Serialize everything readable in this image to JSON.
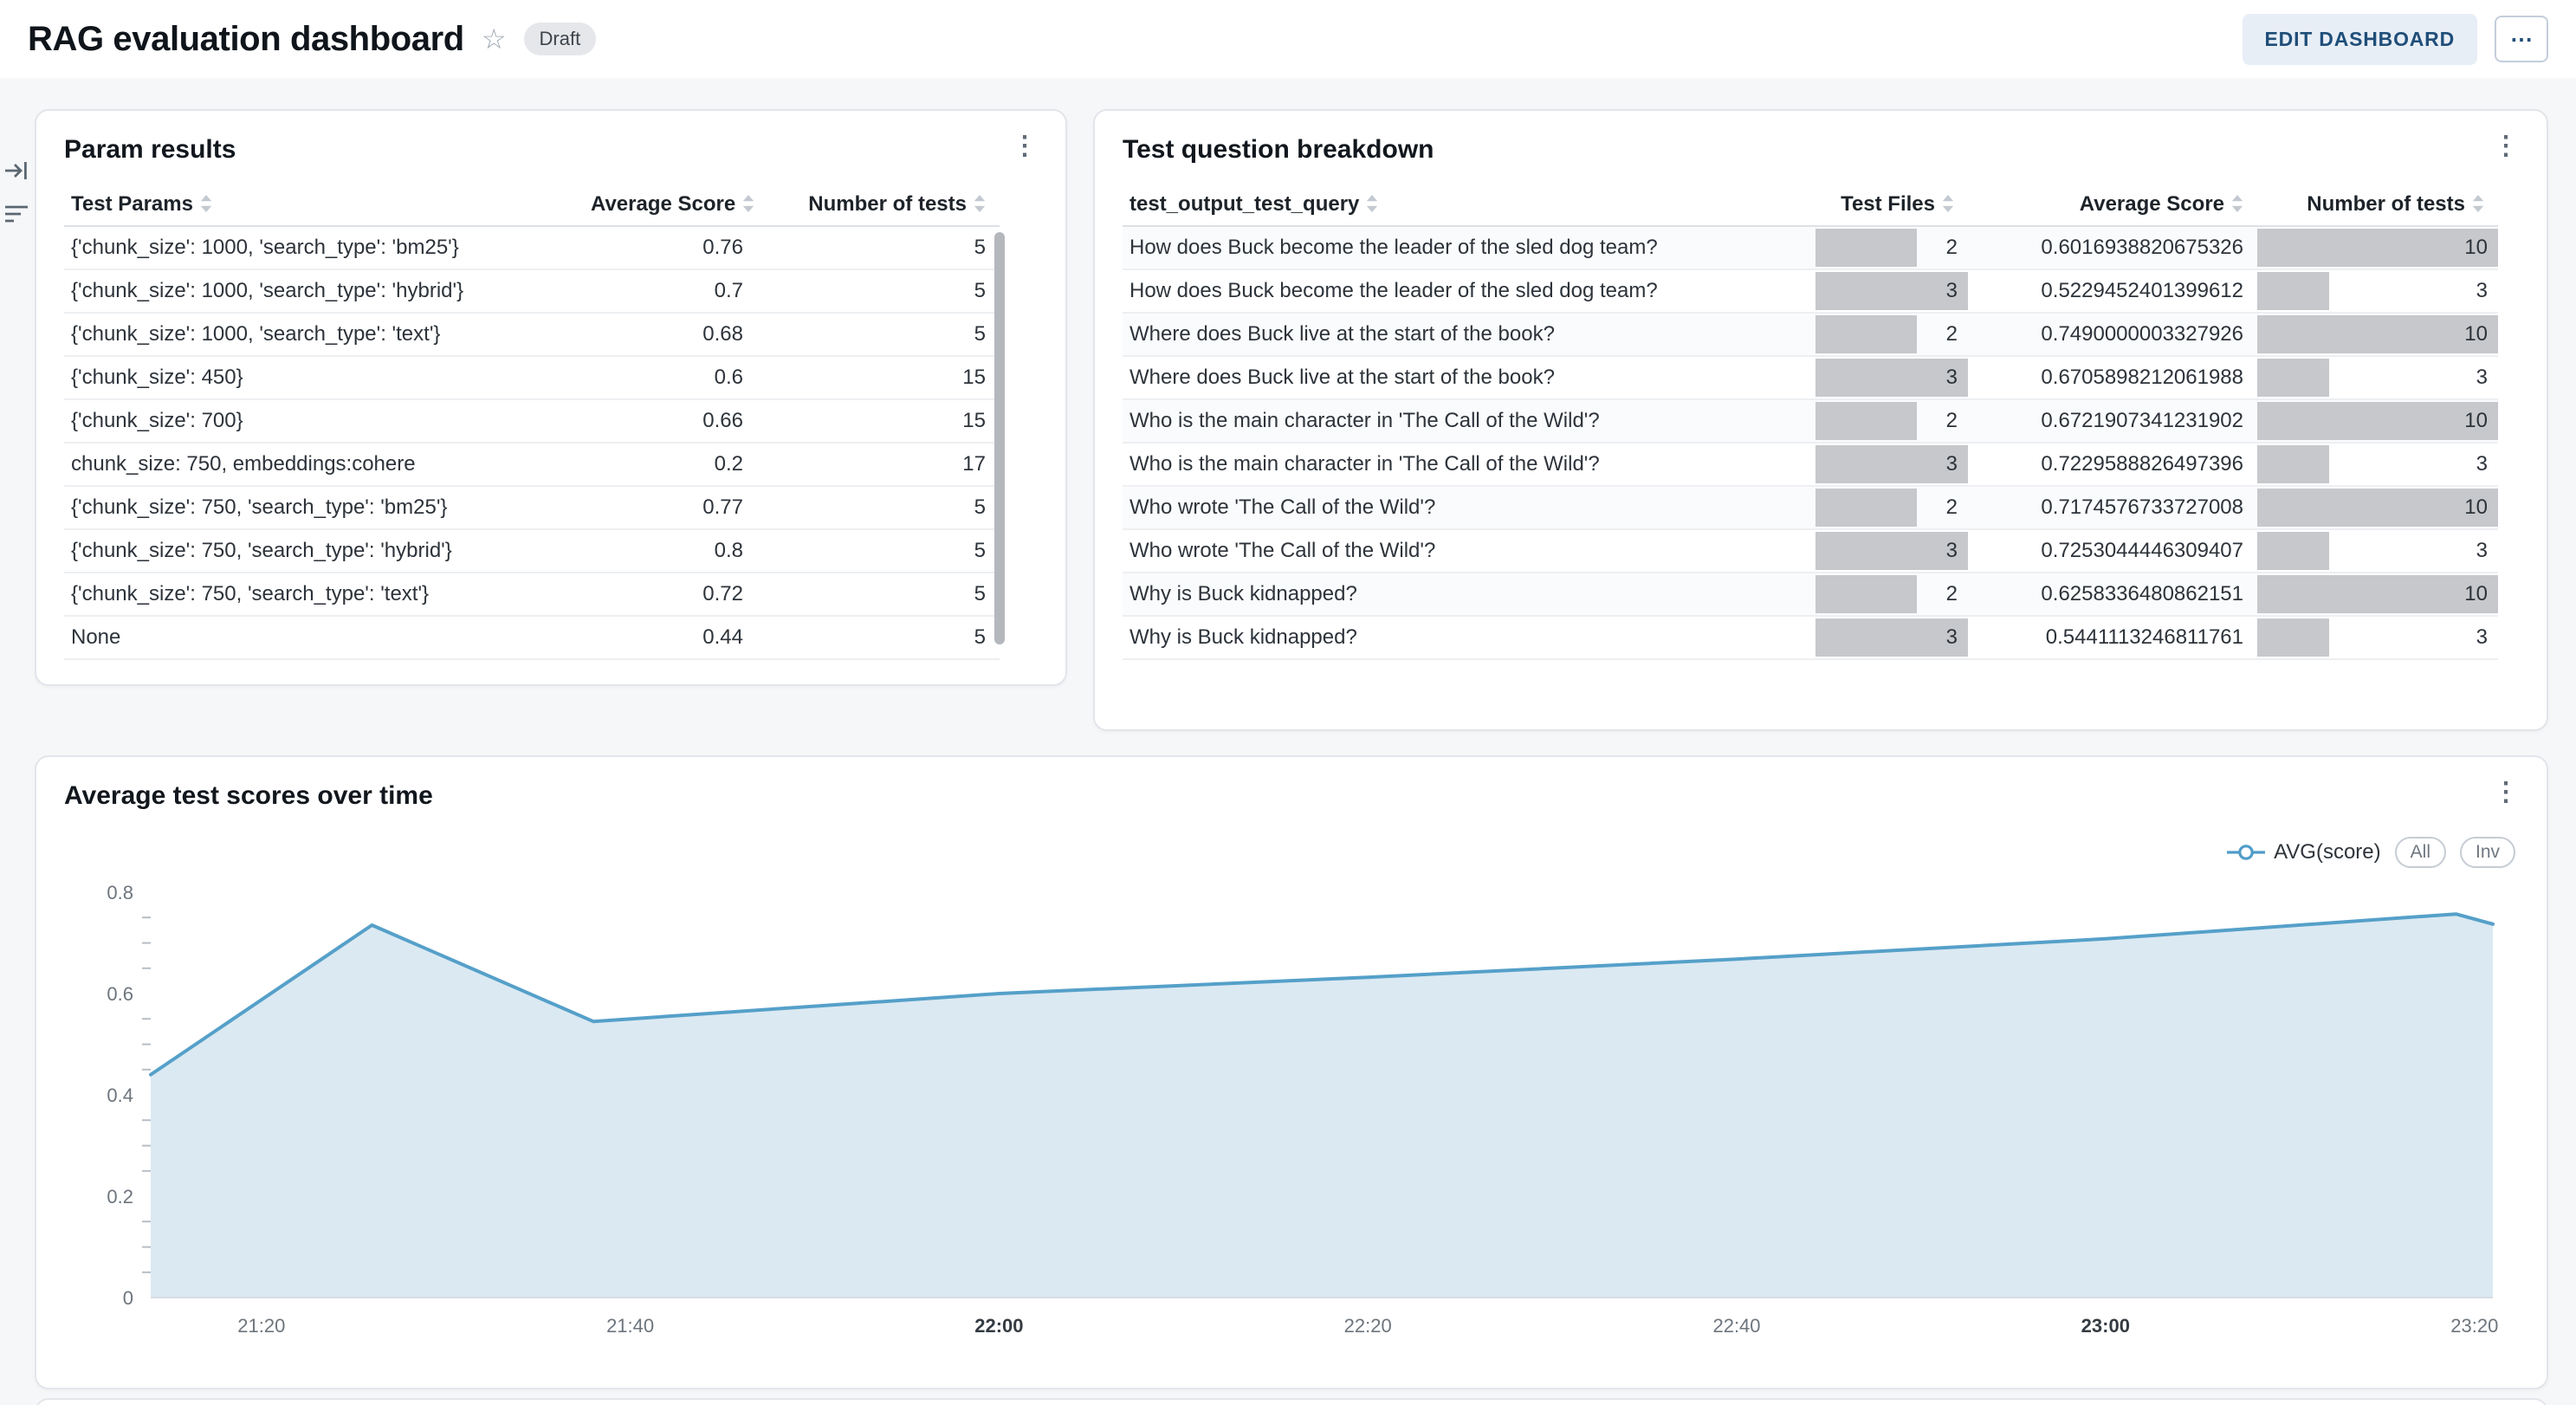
{
  "header": {
    "title": "RAG evaluation dashboard",
    "status_badge": "Draft",
    "edit_button": "EDIT DASHBOARD",
    "more_button": "⋯"
  },
  "icons": {
    "kebab": "⋮",
    "star": "☆"
  },
  "param_results": {
    "title": "Param results",
    "columns": [
      "Test Params",
      "Average Score",
      "Number of tests"
    ],
    "rows": [
      {
        "params": "{'chunk_size': 1000, 'search_type': 'bm25'}",
        "avg_score": "0.76",
        "num_tests": "5"
      },
      {
        "params": "{'chunk_size': 1000, 'search_type': 'hybrid'}",
        "avg_score": "0.7",
        "num_tests": "5"
      },
      {
        "params": "{'chunk_size': 1000, 'search_type': 'text'}",
        "avg_score": "0.68",
        "num_tests": "5"
      },
      {
        "params": "{'chunk_size': 450}",
        "avg_score": "0.6",
        "num_tests": "15"
      },
      {
        "params": "{'chunk_size': 700}",
        "avg_score": "0.66",
        "num_tests": "15"
      },
      {
        "params": "chunk_size: 750, embeddings:cohere",
        "avg_score": "0.2",
        "num_tests": "17"
      },
      {
        "params": "{'chunk_size': 750, 'search_type': 'bm25'}",
        "avg_score": "0.77",
        "num_tests": "5"
      },
      {
        "params": "{'chunk_size': 750, 'search_type': 'hybrid'}",
        "avg_score": "0.8",
        "num_tests": "5"
      },
      {
        "params": "{'chunk_size': 750, 'search_type': 'text'}",
        "avg_score": "0.72",
        "num_tests": "5"
      },
      {
        "params": "None",
        "avg_score": "0.44",
        "num_tests": "5"
      }
    ]
  },
  "question_breakdown": {
    "title": "Test question breakdown",
    "columns": [
      "test_output_test_query",
      "Test Files",
      "Average Score",
      "Number of tests"
    ],
    "bar_color": "#c6c8cb",
    "test_files_max": 3,
    "num_tests_max": 10,
    "rows": [
      {
        "query": "How does Buck become the leader of the sled dog team?",
        "test_files": 2,
        "avg_score": "0.6016938820675326",
        "num_tests": 10
      },
      {
        "query": "How does Buck become the leader of the sled dog team?",
        "test_files": 3,
        "avg_score": "0.5229452401399612",
        "num_tests": 3
      },
      {
        "query": "Where does Buck live at the start of the book?",
        "test_files": 2,
        "avg_score": "0.7490000003327926",
        "num_tests": 10
      },
      {
        "query": "Where does Buck live at the start of the book?",
        "test_files": 3,
        "avg_score": "0.6705898212061988",
        "num_tests": 3
      },
      {
        "query": "Who is the main character in 'The Call of the Wild'?",
        "test_files": 2,
        "avg_score": "0.6721907341231902",
        "num_tests": 10
      },
      {
        "query": "Who is the main character in 'The Call of the Wild'?",
        "test_files": 3,
        "avg_score": "0.7229588826497396",
        "num_tests": 3
      },
      {
        "query": "Who wrote 'The Call of the Wild'?",
        "test_files": 2,
        "avg_score": "0.7174576733727008",
        "num_tests": 10
      },
      {
        "query": "Who wrote 'The Call of the Wild'?",
        "test_files": 3,
        "avg_score": "0.7253044446309407",
        "num_tests": 3
      },
      {
        "query": "Why is Buck kidnapped?",
        "test_files": 2,
        "avg_score": "0.6258336480862151",
        "num_tests": 10
      },
      {
        "query": "Why is Buck kidnapped?",
        "test_files": 3,
        "avg_score": "0.5441113246811761",
        "num_tests": 3
      }
    ]
  },
  "chart_data": {
    "type": "area",
    "title": "Average test scores over time",
    "legend": [
      {
        "label": "AVG(score)",
        "color": "#4f9cc9"
      }
    ],
    "buttons": [
      "All",
      "Inv"
    ],
    "line_color": "#55a0c9",
    "fill_color": "#dbe9f2",
    "ylim": [
      0,
      0.8
    ],
    "y_major_ticks": [
      0,
      0.2,
      0.4,
      0.6,
      0.8
    ],
    "y_minor_step": 0.05,
    "x_domain_minutes": [
      14,
      141
    ],
    "x_ticks": [
      {
        "minute": 20,
        "label": "21:20",
        "bold": false
      },
      {
        "minute": 40,
        "label": "21:40",
        "bold": false
      },
      {
        "minute": 60,
        "label": "22:00",
        "bold": true
      },
      {
        "minute": 80,
        "label": "22:20",
        "bold": false
      },
      {
        "minute": 100,
        "label": "22:40",
        "bold": false
      },
      {
        "minute": 120,
        "label": "23:00",
        "bold": true
      },
      {
        "minute": 140,
        "label": "23:20",
        "bold": false
      }
    ],
    "series": [
      {
        "name": "AVG(score)",
        "points": [
          [
            14,
            0.44
          ],
          [
            26,
            0.735
          ],
          [
            38,
            0.545
          ],
          [
            60,
            0.6
          ],
          [
            80,
            0.632
          ],
          [
            100,
            0.668
          ],
          [
            120,
            0.708
          ],
          [
            139,
            0.757
          ],
          [
            141,
            0.737
          ]
        ]
      }
    ]
  }
}
